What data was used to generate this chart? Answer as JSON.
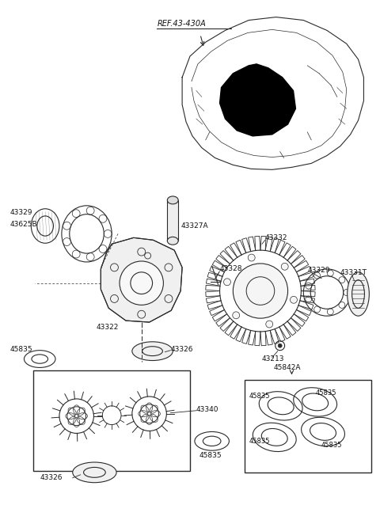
{
  "bg_color": "#ffffff",
  "line_color": "#2a2a2a",
  "fig_w": 4.8,
  "fig_h": 6.57,
  "dpi": 100,
  "labels": {
    "ref": "REF.43-430A",
    "43329a": "43329",
    "43625B": "43625B",
    "43327A": "43327A",
    "43322": "43322",
    "43328": "43328",
    "43332": "43332",
    "43329b": "43329",
    "43331T": "43331T",
    "43213": "43213",
    "45842A": "45842A",
    "43326a": "43326",
    "45835a": "45835",
    "43340": "43340",
    "43326b": "43326",
    "45835b": "45835",
    "45835c": "45835",
    "45835d": "45835",
    "45835e": "45835",
    "45835f": "45835"
  }
}
